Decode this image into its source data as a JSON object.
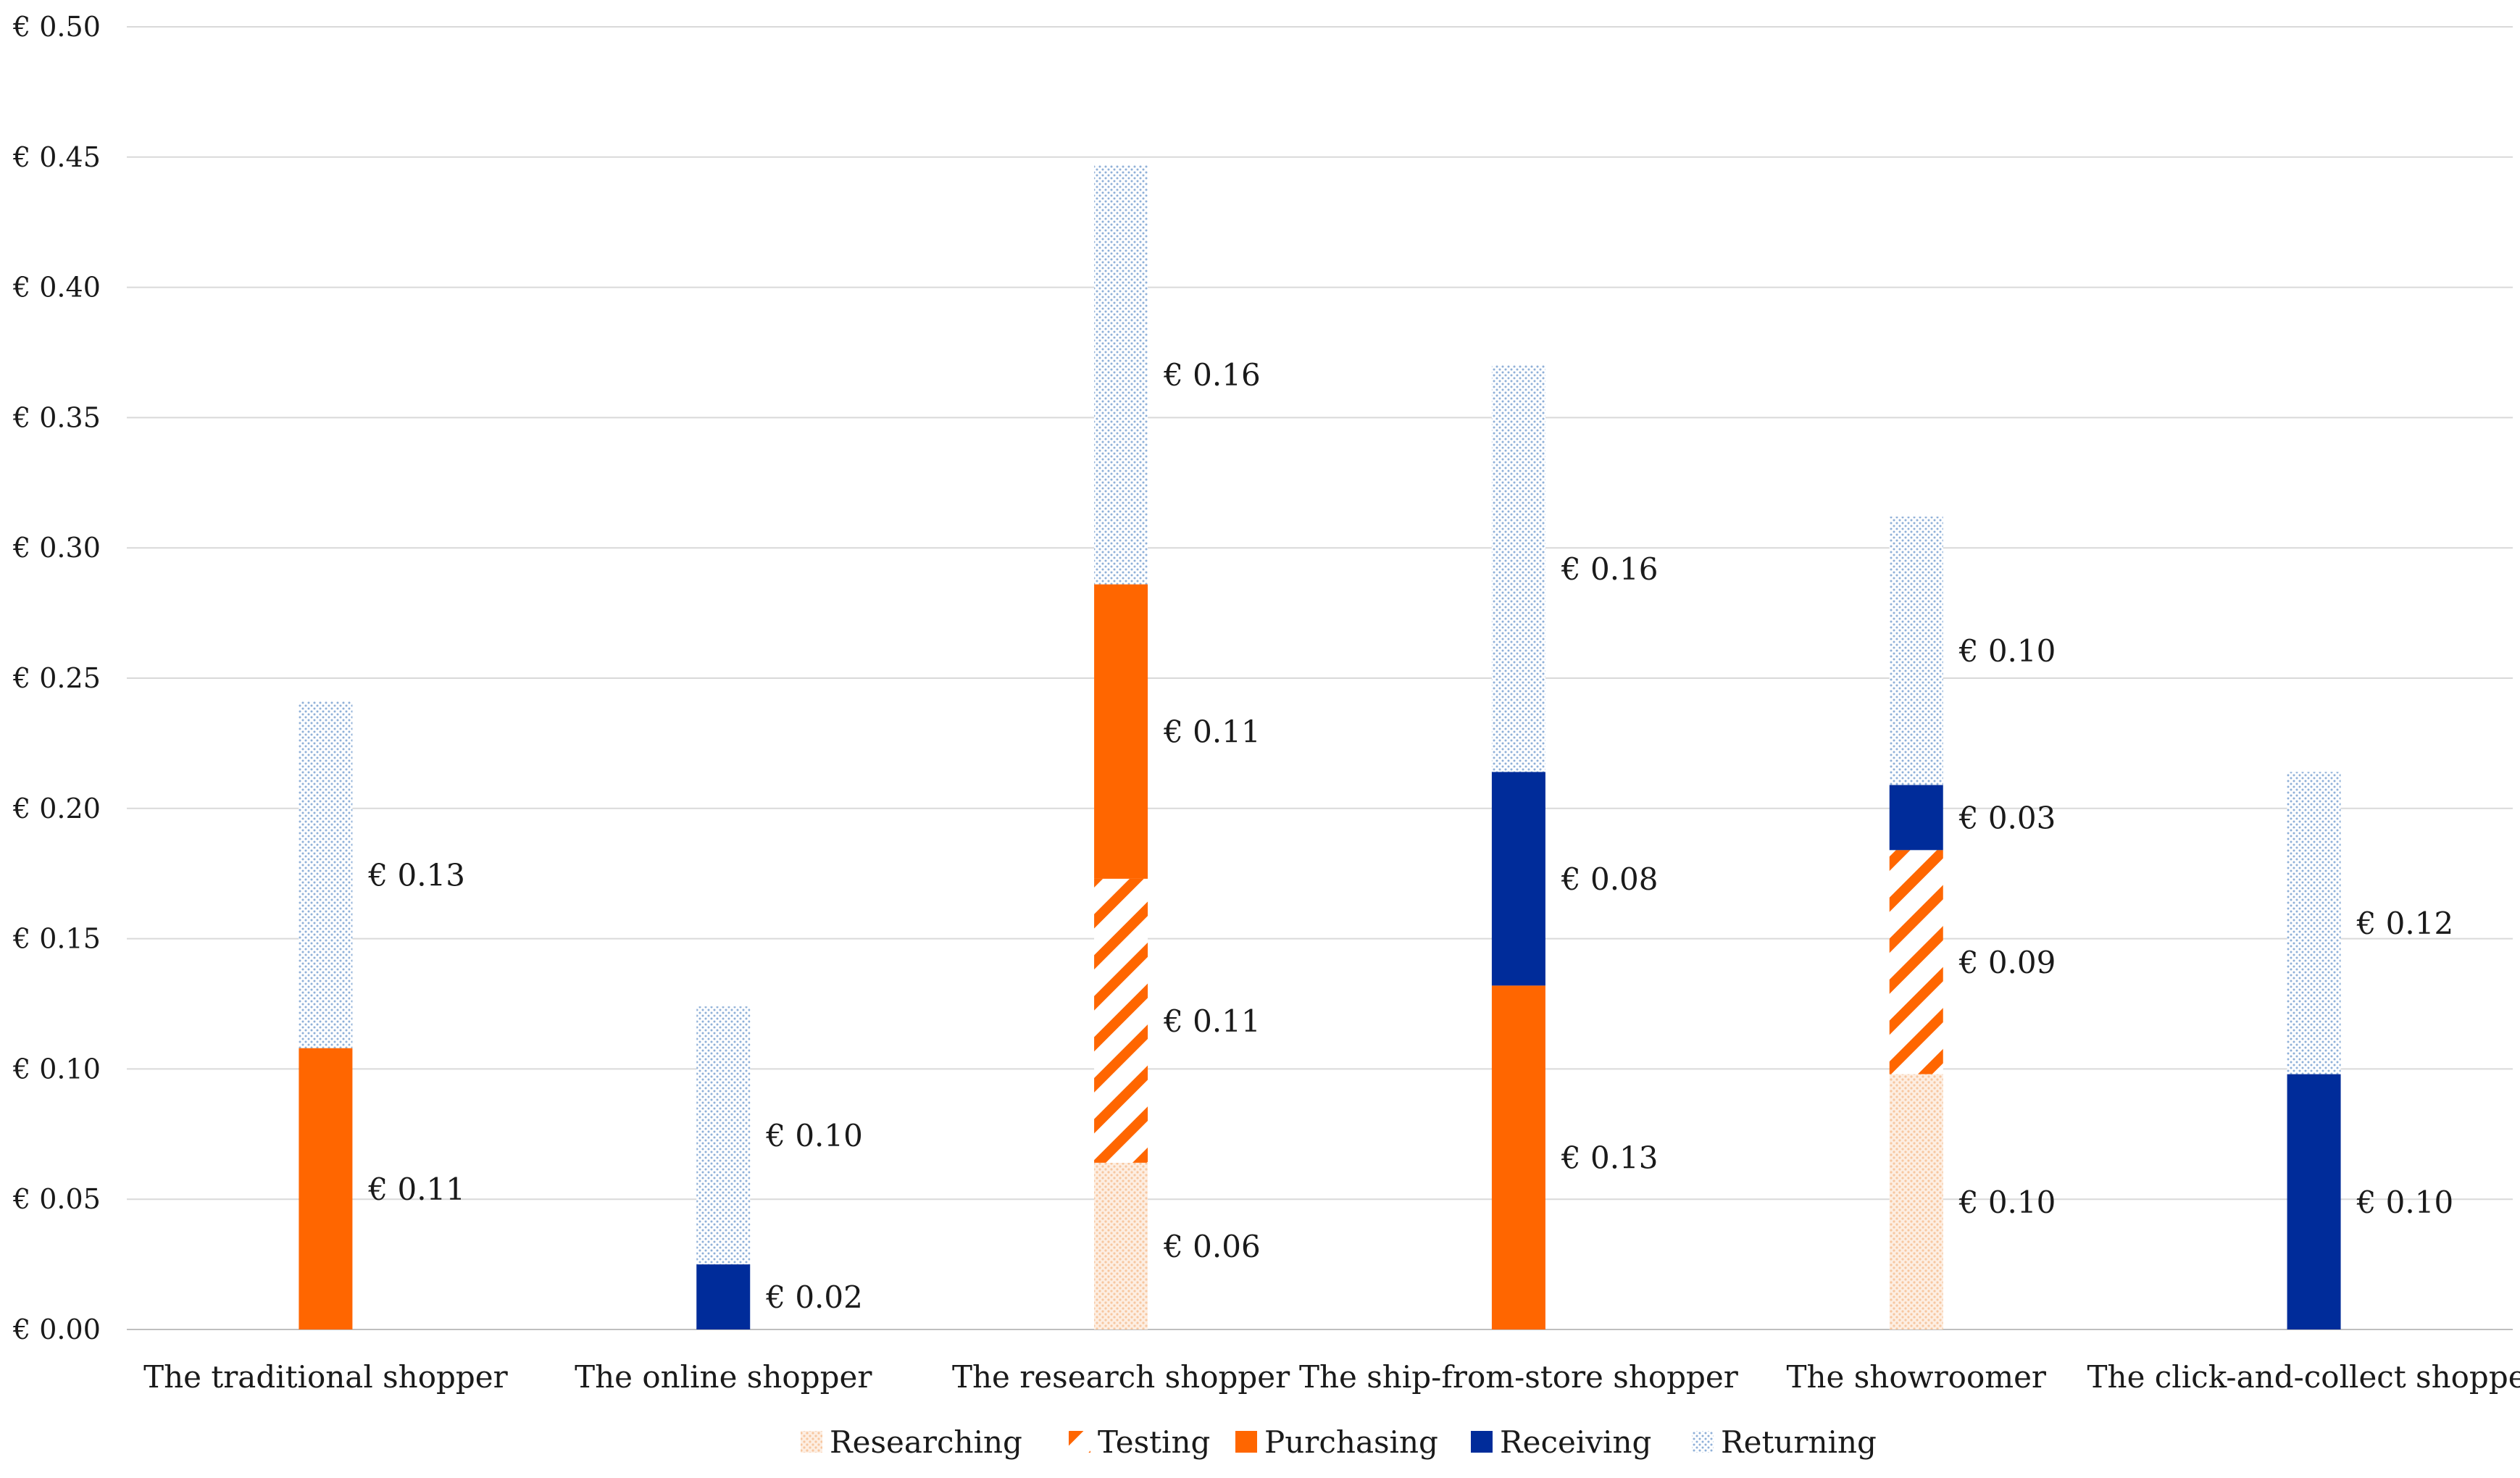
{
  "chart_data": {
    "type": "bar",
    "stacked": true,
    "title": "",
    "xlabel": "",
    "ylabel": "",
    "ylim": [
      0,
      0.5
    ],
    "y_ticks": [
      0,
      0.05,
      0.1,
      0.15,
      0.2,
      0.25,
      0.3,
      0.35,
      0.4,
      0.45,
      0.5
    ],
    "y_tick_labels": [
      "€ 0.00",
      "€ 0.05",
      "€ 0.10",
      "€ 0.15",
      "€ 0.20",
      "€ 0.25",
      "€ 0.30",
      "€ 0.35",
      "€ 0.40",
      "€ 0.45",
      "€ 0.50"
    ],
    "grid": "horizontal",
    "legend_position": "bottom",
    "categories": [
      "The traditional shopper",
      "The online shopper",
      "The research shopper",
      "The ship-from-store shopper",
      "The showroomer",
      "The click-and-collect shopper"
    ],
    "series": [
      {
        "name": "Researching",
        "color": "#f7c7a0",
        "pattern": "dots",
        "values": [
          0,
          0,
          0.064,
          0,
          0.098,
          0
        ],
        "labels": [
          null,
          null,
          "€ 0.06",
          null,
          "€ 0.10",
          null
        ]
      },
      {
        "name": "Testing",
        "color": "#ff6600",
        "pattern": "diagonal",
        "values": [
          0,
          0,
          0.109,
          0,
          0.086,
          0
        ],
        "labels": [
          null,
          null,
          "€ 0.11",
          null,
          "€ 0.09",
          null
        ]
      },
      {
        "name": "Purchasing",
        "color": "#ff6600",
        "pattern": "solid",
        "values": [
          0.108,
          0,
          0.113,
          0.132,
          0,
          0
        ],
        "labels": [
          "€ 0.11",
          null,
          "€ 0.11",
          "€ 0.13",
          null,
          null
        ]
      },
      {
        "name": "Receiving",
        "color": "#002c9a",
        "pattern": "solid",
        "values": [
          0,
          0.025,
          0,
          0.082,
          0.025,
          0.098
        ],
        "labels": [
          null,
          "€ 0.02",
          null,
          "€ 0.08",
          "€ 0.03",
          "€ 0.10"
        ]
      },
      {
        "name": "Returning",
        "color": "#8fb0d8",
        "pattern": "dots",
        "values": [
          0.133,
          0.099,
          0.161,
          0.156,
          0.103,
          0.116
        ],
        "labels": [
          "€ 0.13",
          "€ 0.10",
          "€ 0.16",
          "€ 0.16",
          "€ 0.10",
          "€ 0.12"
        ]
      }
    ]
  }
}
